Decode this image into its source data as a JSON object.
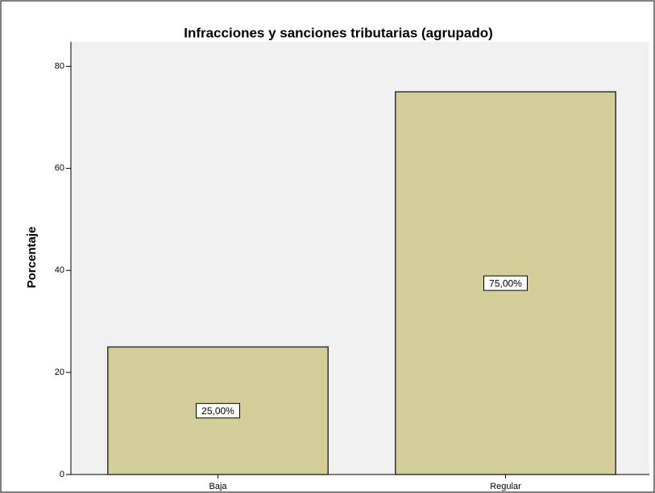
{
  "chart_data": {
    "type": "bar",
    "title": "Infracciones y sanciones tributarias (agrupado)",
    "y_label": "Porcentaje",
    "categories": [
      "Baja",
      "Regular"
    ],
    "values": [
      25,
      75
    ],
    "value_labels": [
      "25,00%",
      "75,00%"
    ],
    "color": "#d3ce97",
    "ylim": [
      0,
      84.8
    ],
    "yticks": [
      0,
      20,
      40,
      60,
      80
    ],
    "grid": false
  }
}
